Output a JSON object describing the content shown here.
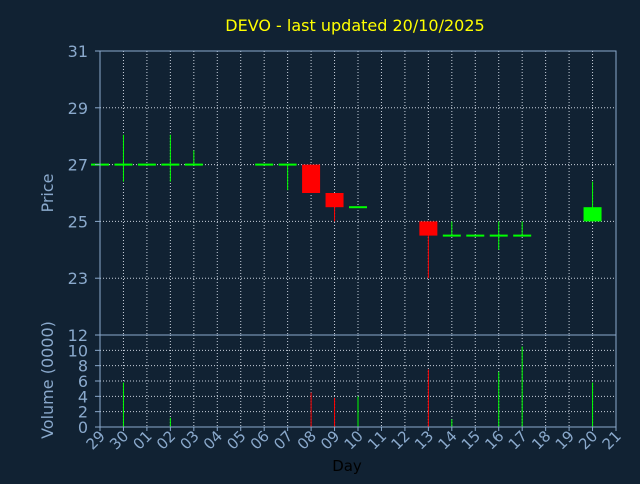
{
  "colors": {
    "background": "#112233",
    "title": "#ffff00",
    "axis_text": "#8aa9cc",
    "frame": "#8aa9cc",
    "grid": "#c8d0dc",
    "up": "#00ff00",
    "down": "#ff0000",
    "day_label": "#000000"
  },
  "chart_data": [
    {
      "type": "candlestick",
      "title": "DEVO - last updated 20/10/2025",
      "ylabel": "Price",
      "ylim": [
        21,
        31
      ],
      "yticks": [
        23,
        25,
        27,
        29,
        31
      ],
      "grid": true,
      "x_ticks": [
        "29",
        "30",
        "01",
        "02",
        "03",
        "04",
        "05",
        "06",
        "07",
        "08",
        "09",
        "10",
        "11",
        "12",
        "13",
        "14",
        "15",
        "16",
        "17",
        "18",
        "19",
        "20",
        "21"
      ],
      "candles": [
        {
          "day": "29",
          "open": 27.0,
          "high": 27.0,
          "low": 27.0,
          "close": 27.0,
          "dir": "up"
        },
        {
          "day": "30",
          "open": 27.0,
          "high": 28.05,
          "low": 26.4,
          "close": 27.0,
          "dir": "up"
        },
        {
          "day": "01",
          "open": 27.0,
          "high": 27.0,
          "low": 27.0,
          "close": 27.0,
          "dir": "up"
        },
        {
          "day": "02",
          "open": 27.0,
          "high": 28.05,
          "low": 26.4,
          "close": 27.0,
          "dir": "up"
        },
        {
          "day": "03",
          "open": 27.0,
          "high": 27.5,
          "low": 27.0,
          "close": 27.0,
          "dir": "up"
        },
        {
          "day": "06",
          "open": 27.0,
          "high": 27.0,
          "low": 27.0,
          "close": 27.0,
          "dir": "up"
        },
        {
          "day": "07",
          "open": 27.0,
          "high": 27.0,
          "low": 26.1,
          "close": 27.0,
          "dir": "up"
        },
        {
          "day": "08",
          "open": 27.0,
          "high": 27.0,
          "low": 26.0,
          "close": 26.0,
          "dir": "down"
        },
        {
          "day": "09",
          "open": 26.0,
          "high": 26.0,
          "low": 25.0,
          "close": 25.5,
          "dir": "down"
        },
        {
          "day": "10",
          "open": 25.5,
          "high": 25.5,
          "low": 25.5,
          "close": 25.5,
          "dir": "up"
        },
        {
          "day": "13",
          "open": 25.0,
          "high": 25.0,
          "low": 23.0,
          "close": 24.5,
          "dir": "down"
        },
        {
          "day": "14",
          "open": 24.5,
          "high": 25.0,
          "low": 24.5,
          "close": 24.5,
          "dir": "up"
        },
        {
          "day": "15",
          "open": 24.5,
          "high": 24.5,
          "low": 24.5,
          "close": 24.5,
          "dir": "up"
        },
        {
          "day": "16",
          "open": 24.5,
          "high": 25.0,
          "low": 24.0,
          "close": 24.5,
          "dir": "up"
        },
        {
          "day": "17",
          "open": 24.5,
          "high": 25.0,
          "low": 24.5,
          "close": 24.5,
          "dir": "up"
        },
        {
          "day": "20",
          "open": 25.0,
          "high": 26.4,
          "low": 25.0,
          "close": 25.5,
          "dir": "up"
        }
      ]
    },
    {
      "type": "bar",
      "ylabel": "Volume (0000)",
      "xlabel": "Day",
      "ylim": [
        0,
        12
      ],
      "yticks": [
        0,
        2,
        4,
        6,
        8,
        10,
        12
      ],
      "grid": true,
      "x_ticks": [
        "29",
        "30",
        "01",
        "02",
        "03",
        "04",
        "05",
        "06",
        "07",
        "08",
        "09",
        "10",
        "11",
        "12",
        "13",
        "14",
        "15",
        "16",
        "17",
        "18",
        "19",
        "20",
        "21"
      ],
      "bars": [
        {
          "day": "30",
          "value": 5.8,
          "dir": "up"
        },
        {
          "day": "02",
          "value": 1.2,
          "dir": "up"
        },
        {
          "day": "08",
          "value": 4.5,
          "dir": "down"
        },
        {
          "day": "09",
          "value": 3.8,
          "dir": "down"
        },
        {
          "day": "10",
          "value": 4.0,
          "dir": "up"
        },
        {
          "day": "13",
          "value": 7.5,
          "dir": "down"
        },
        {
          "day": "14",
          "value": 1.0,
          "dir": "up"
        },
        {
          "day": "16",
          "value": 7.2,
          "dir": "up"
        },
        {
          "day": "17",
          "value": 10.5,
          "dir": "up"
        },
        {
          "day": "20",
          "value": 5.8,
          "dir": "up"
        }
      ]
    }
  ]
}
